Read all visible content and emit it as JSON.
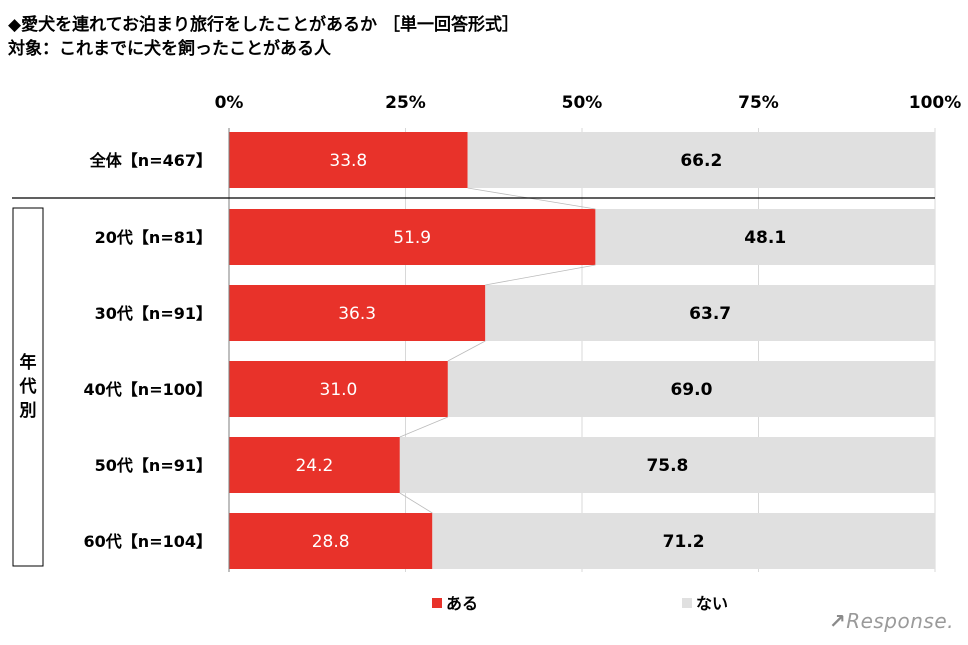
{
  "title": "◆愛犬を連れてお泊まり旅行をしたことがあるか ［単一回答形式］",
  "subtitle": "対象：これまでに犬を飼ったことがある人",
  "group_label": "年代別",
  "watermark": "Response.",
  "colors": {
    "aru": "#e8322a",
    "nai": "#e0e0e0"
  },
  "chart_data": {
    "type": "bar",
    "orientation": "horizontal",
    "stacked": true,
    "percent": true,
    "categories": [
      "全体【n=467】",
      "20代【n=81】",
      "30代【n=91】",
      "40代【n=100】",
      "50代【n=91】",
      "60代【n=104】"
    ],
    "series": [
      {
        "name": "ある",
        "values": [
          33.8,
          51.9,
          36.3,
          31.0,
          24.2,
          28.8
        ]
      },
      {
        "name": "ない",
        "values": [
          66.2,
          48.1,
          63.7,
          69.0,
          75.8,
          71.2
        ]
      }
    ],
    "xlim": [
      0,
      100
    ],
    "xticks": [
      "0%",
      "25%",
      "50%",
      "75%",
      "100%"
    ],
    "grid": true,
    "legend_position": "bottom"
  }
}
